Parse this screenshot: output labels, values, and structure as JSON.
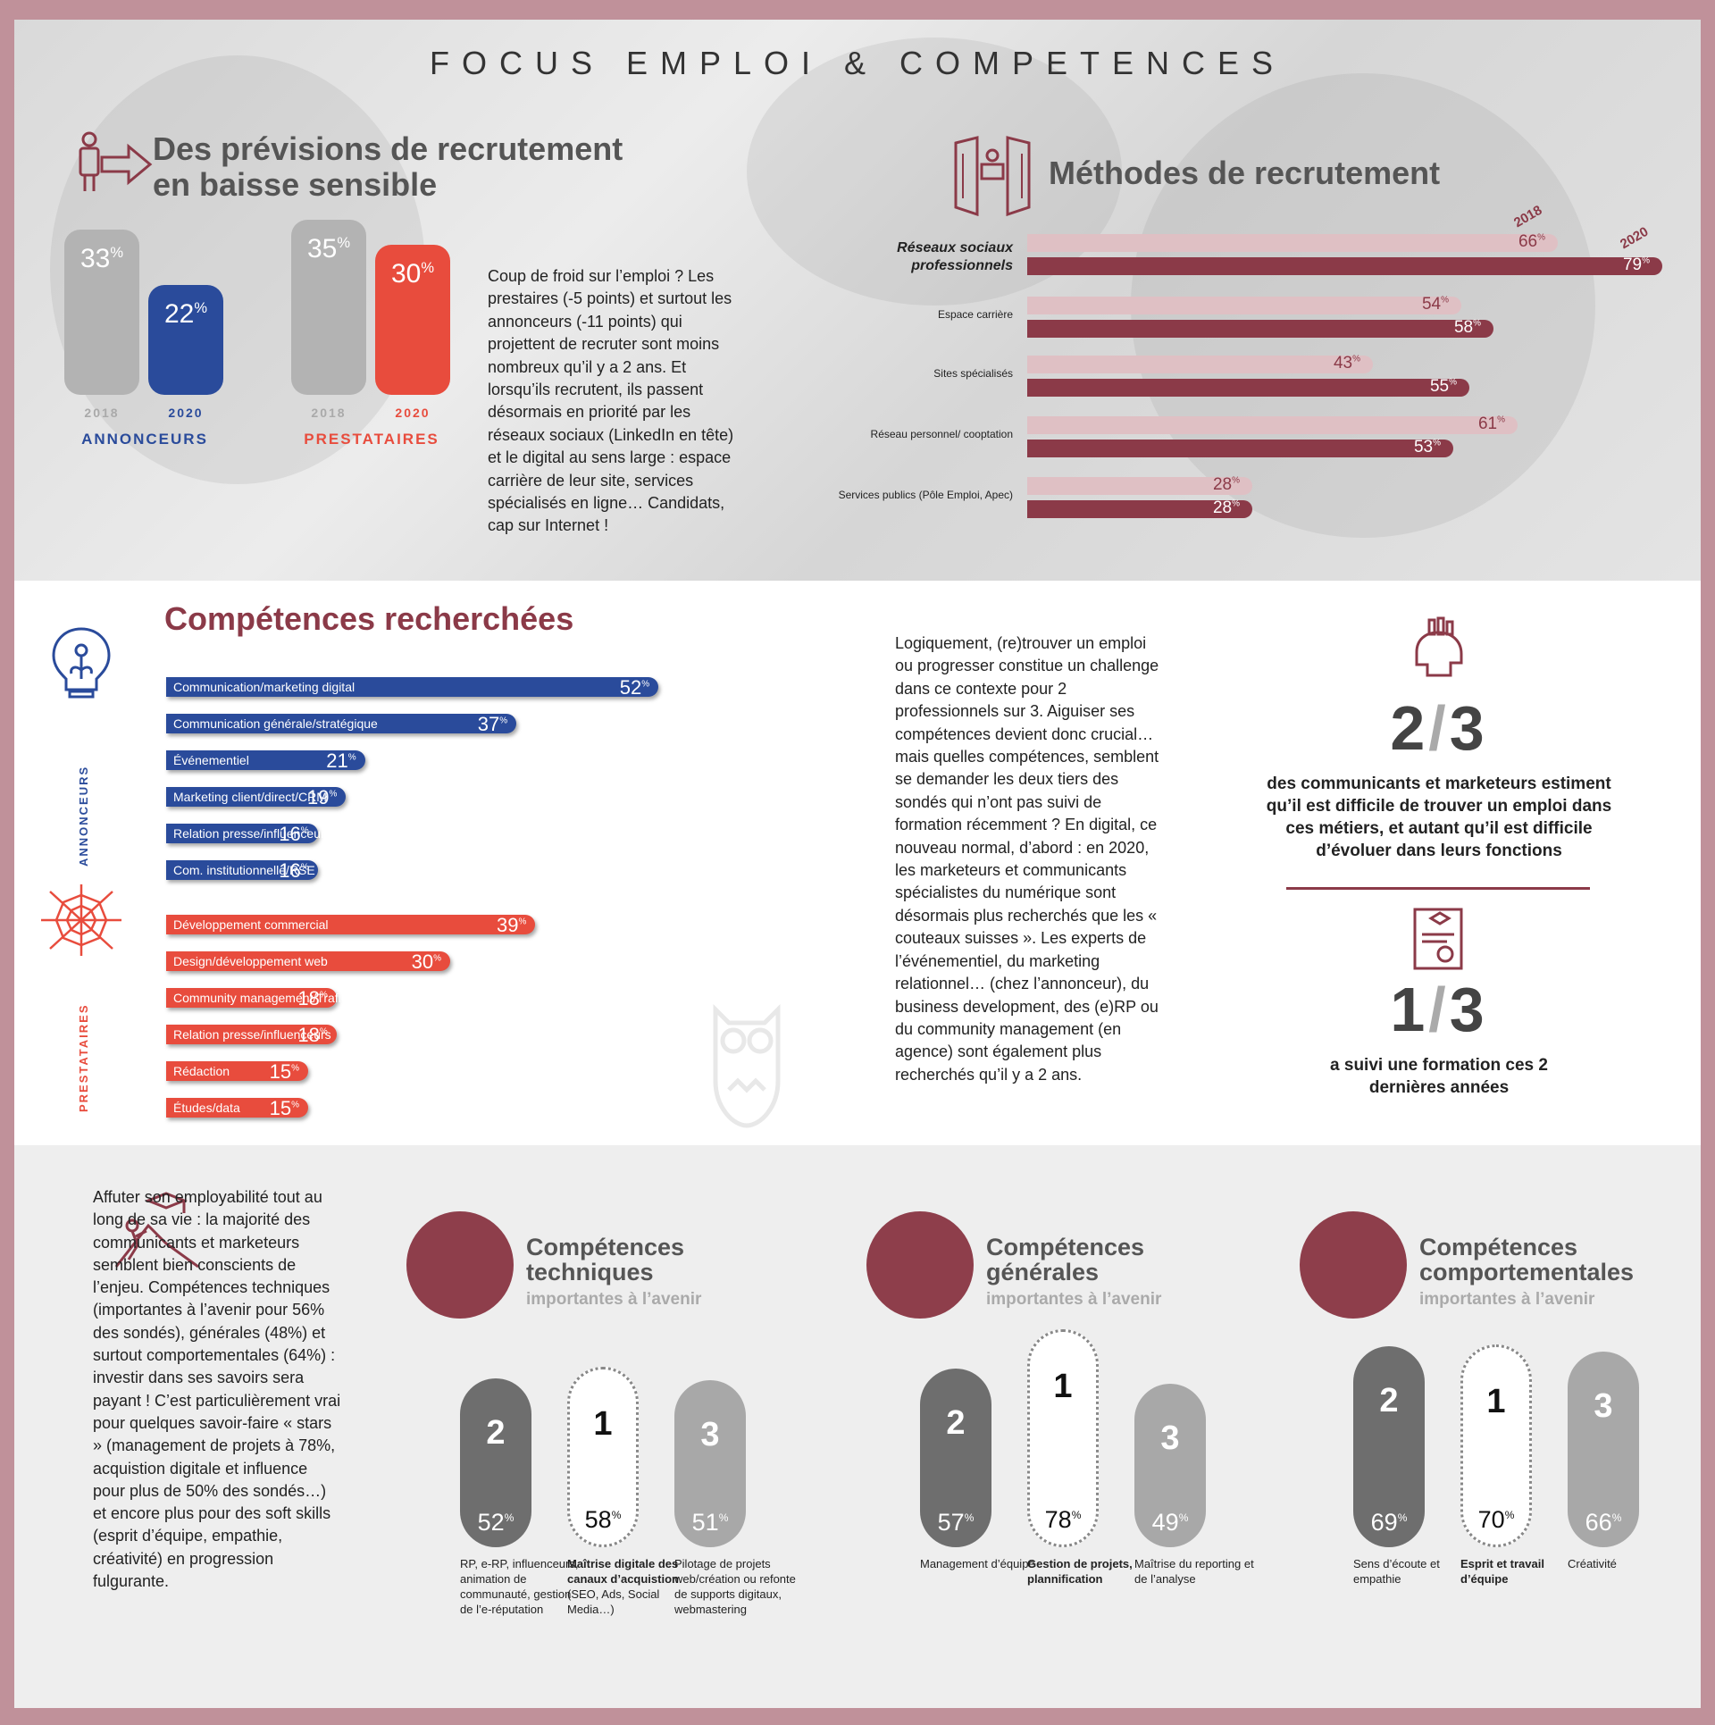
{
  "page_title": "FOCUS EMPLOI & COMPETENCES",
  "section_recruit": {
    "title_l1": "Des prévisions de recrutement",
    "title_l2": "en baisse sensible",
    "paragraph": "Coup de froid sur l’emploi ? Les prestaires (-5 points) et surtout les annonceurs (-11 points) qui projettent de recruter sont moins nombreux qu’il y a 2 ans. Et lorsqu’ils recrutent, ils passent désormais en priorité par les réseaux sociaux (LinkedIn en tête) et le digital au sens large : espace carrière de leur site, services spécialisés en ligne… Candidats, cap sur Internet !"
  },
  "section_methods": {
    "title": "Méthodes de recrutement"
  },
  "section_skills": {
    "title": "Compétences recherchées",
    "label_annonceurs": "ANNONCEURS",
    "label_prestataires": "PRESTATAIRES",
    "paragraph": "Logiquement, (re)trouver un emploi ou progresser constitue un challenge dans ce contexte pour 2 professionnels sur 3. Aiguiser ses compétences devient donc crucial… mais quelles compétences, semblent se demander les deux tiers des sondés qui n’ont pas suivi de formation récemment ? En digital, ce nouveau normal, d’abord : en 2020, les marketeurs et communicants spécialistes du numérique sont désormais plus recherchés que les « couteaux suisses ». Les experts de l’événementiel, du marketing relationnel… (chez l’annonceur), du business development, des (e)RP ou du community management (en agence) sont également plus recherchés qu’il y a 2 ans."
  },
  "stats": {
    "s1_num": "2",
    "s1_den": "3",
    "s1_text": "des communicants et marketeurs estiment qu’il est difficile de trouver un emploi dans ces métiers, et autant qu’il est difficile d’évoluer dans leurs fonctions",
    "s2_num": "1",
    "s2_den": "3",
    "s2_text": "a suivi une formation ces 2 dernières années"
  },
  "section_future": {
    "paragraph": "Affuter son employabilité tout au long de sa vie : la majorité des communicants et marketeurs semblent bien conscients de l’enjeu. Compétences techniques (importantes à l’avenir pour 56% des sondés), générales (48%) et surtout comportementales (64%) : investir dans ses savoirs sera payant ! C’est particulièrement vrai pour quelques savoir-faire « stars » (management de projets à 78%, acquistion digitale et influence pour plus de 50% des sondés…) et encore plus pour des soft skills (esprit d’équipe, empathie, créativité) en progression fulgurante.",
    "subtitle": "importantes à l’avenir"
  },
  "colors": {
    "blue": "#2a4b9b",
    "red": "#e84c3d",
    "grey": "#b3b3b3",
    "maroon": "#8b3a48",
    "pink": "#dfc0c4"
  },
  "chart_data": [
    {
      "type": "bar",
      "title": "Des prévisions de recrutement en baisse sensible",
      "categories": [
        "ANNONCEURS",
        "PRESTATAIRES"
      ],
      "x_labels": [
        "2018",
        "2020"
      ],
      "series": [
        {
          "name": "ANNONCEURS",
          "values": [
            33,
            22
          ]
        },
        {
          "name": "PRESTATAIRES",
          "values": [
            35,
            30
          ]
        }
      ],
      "unit": "%"
    },
    {
      "type": "bar",
      "orientation": "horizontal",
      "title": "Méthodes de recrutement",
      "categories": [
        "Réseaux sociaux professionnels",
        "Espace carrière",
        "Sites spécialisés",
        "Réseau personnel/ cooptation",
        "Services publics (Pôle Emploi, Apec)"
      ],
      "series": [
        {
          "name": "2018",
          "values": [
            66,
            54,
            43,
            61,
            28
          ]
        },
        {
          "name": "2020",
          "values": [
            79,
            58,
            55,
            53,
            28
          ]
        }
      ],
      "unit": "%"
    },
    {
      "type": "bar",
      "orientation": "horizontal",
      "title": "Compétences recherchées",
      "groups": [
        {
          "name": "ANNONCEURS",
          "categories": [
            "Communication/marketing digital",
            "Communication générale/stratégique",
            "Événementiel",
            "Marketing client/direct/CRM",
            "Relation presse/influenceurs",
            "Com. institutionnelle/RSE"
          ],
          "values": [
            52,
            37,
            21,
            19,
            16,
            16
          ]
        },
        {
          "name": "PRESTATAIRES",
          "categories": [
            "Développement commercial",
            "Design/développement web",
            "Community management/Trafic",
            "Relation presse/influenceurs",
            "Rédaction",
            "Études/data"
          ],
          "values": [
            39,
            30,
            18,
            18,
            15,
            15
          ]
        }
      ],
      "unit": "%"
    },
    {
      "type": "bar",
      "title": "Compétences techniques importantes à l’avenir",
      "items": [
        {
          "rank": "2",
          "value": 52,
          "label": "RP, e-RP, influenceurs, animation de communauté, gestion de l’e-réputation"
        },
        {
          "rank": "1",
          "value": 58,
          "label_bold": "Maîtrise digitale des canaux d’acquistion",
          "label": "(SEO, Ads, Social Media…)"
        },
        {
          "rank": "3",
          "value": 51,
          "label": "Pilotage de projets web/création ou refonte de supports digitaux, webmastering"
        }
      ],
      "unit": "%"
    },
    {
      "type": "bar",
      "title": "Compétences générales importantes à l’avenir",
      "items": [
        {
          "rank": "2",
          "value": 57,
          "label": "Management d’équipe"
        },
        {
          "rank": "1",
          "value": 78,
          "label_bold": "Gestion de projets, plannification"
        },
        {
          "rank": "3",
          "value": 49,
          "label": "Maîtrise du reporting et de l’analyse"
        }
      ],
      "unit": "%"
    },
    {
      "type": "bar",
      "title": "Compétences comportementales importantes à l’avenir",
      "items": [
        {
          "rank": "2",
          "value": 69,
          "label": "Sens d’écoute et empathie"
        },
        {
          "rank": "1",
          "value": 70,
          "label_bold": "Esprit et travail d’équipe"
        },
        {
          "rank": "3",
          "value": 66,
          "label": "Créativité"
        }
      ],
      "unit": "%"
    }
  ]
}
